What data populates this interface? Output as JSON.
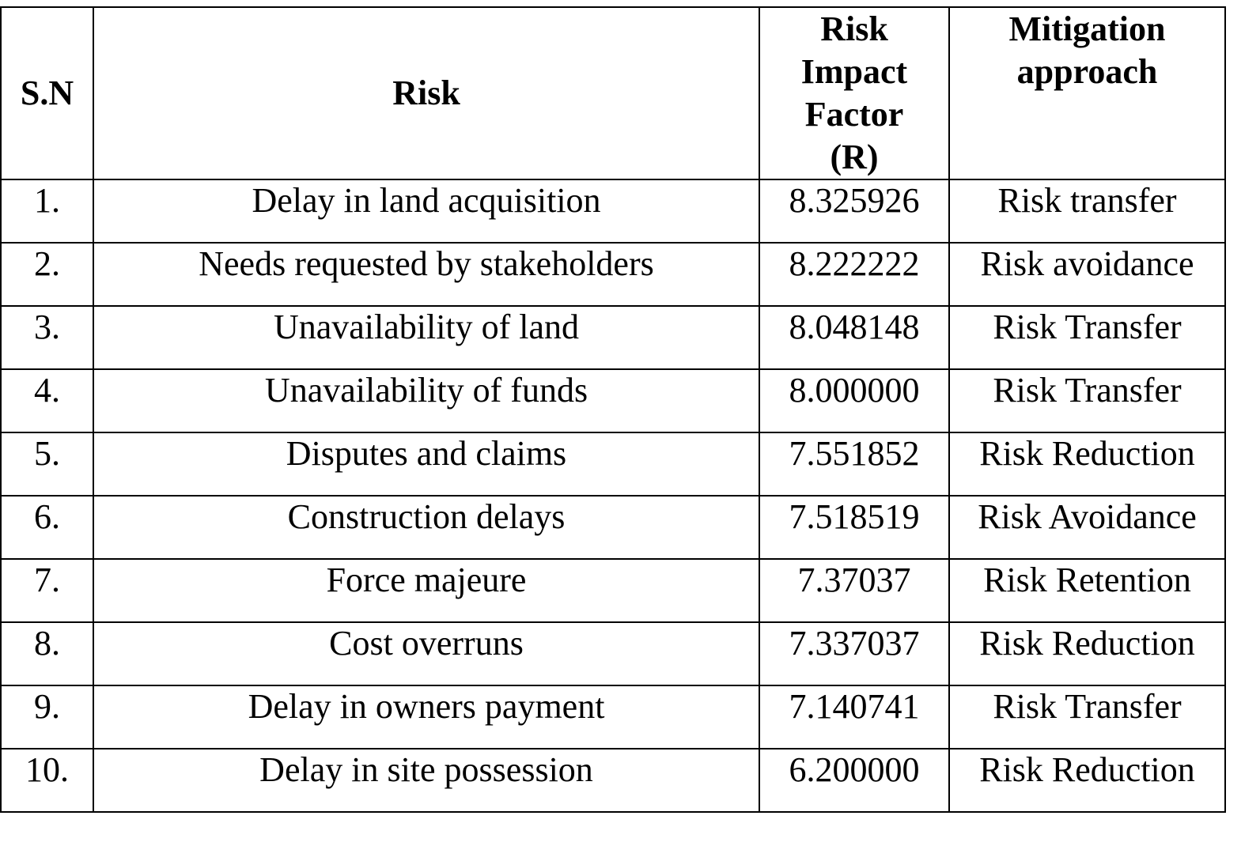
{
  "table": {
    "headers": {
      "sn": "S.N",
      "risk": "Risk",
      "factor_lines": [
        "Risk",
        "Impact",
        "Factor",
        "(R)"
      ],
      "mitigation_lines": [
        "Mitigation",
        "approach"
      ]
    },
    "rows": [
      {
        "sn": "1.",
        "risk": "Delay in land acquisition",
        "factor": "8.325926",
        "mitigation": "Risk transfer"
      },
      {
        "sn": "2.",
        "risk": "Needs requested by stakeholders",
        "factor": "8.222222",
        "mitigation": "Risk avoidance"
      },
      {
        "sn": "3.",
        "risk": "Unavailability of land",
        "factor": "8.048148",
        "mitigation": "Risk Transfer"
      },
      {
        "sn": "4.",
        "risk": "Unavailability of funds",
        "factor": "8.000000",
        "mitigation": "Risk Transfer"
      },
      {
        "sn": "5.",
        "risk": "Disputes and claims",
        "factor": "7.551852",
        "mitigation": "Risk Reduction"
      },
      {
        "sn": "6.",
        "risk": "Construction delays",
        "factor": "7.518519",
        "mitigation": "Risk Avoidance"
      },
      {
        "sn": "7.",
        "risk": "Force majeure",
        "factor": "7.37037",
        "mitigation": "Risk Retention"
      },
      {
        "sn": "8.",
        "risk": "Cost overruns",
        "factor": "7.337037",
        "mitigation": "Risk Reduction"
      },
      {
        "sn": "9.",
        "risk": "Delay in owners payment",
        "factor": "7.140741",
        "mitigation": "Risk Transfer"
      },
      {
        "sn": "10.",
        "risk": "Delay in site possession",
        "factor": "6.200000",
        "mitigation": "Risk Reduction"
      }
    ]
  }
}
